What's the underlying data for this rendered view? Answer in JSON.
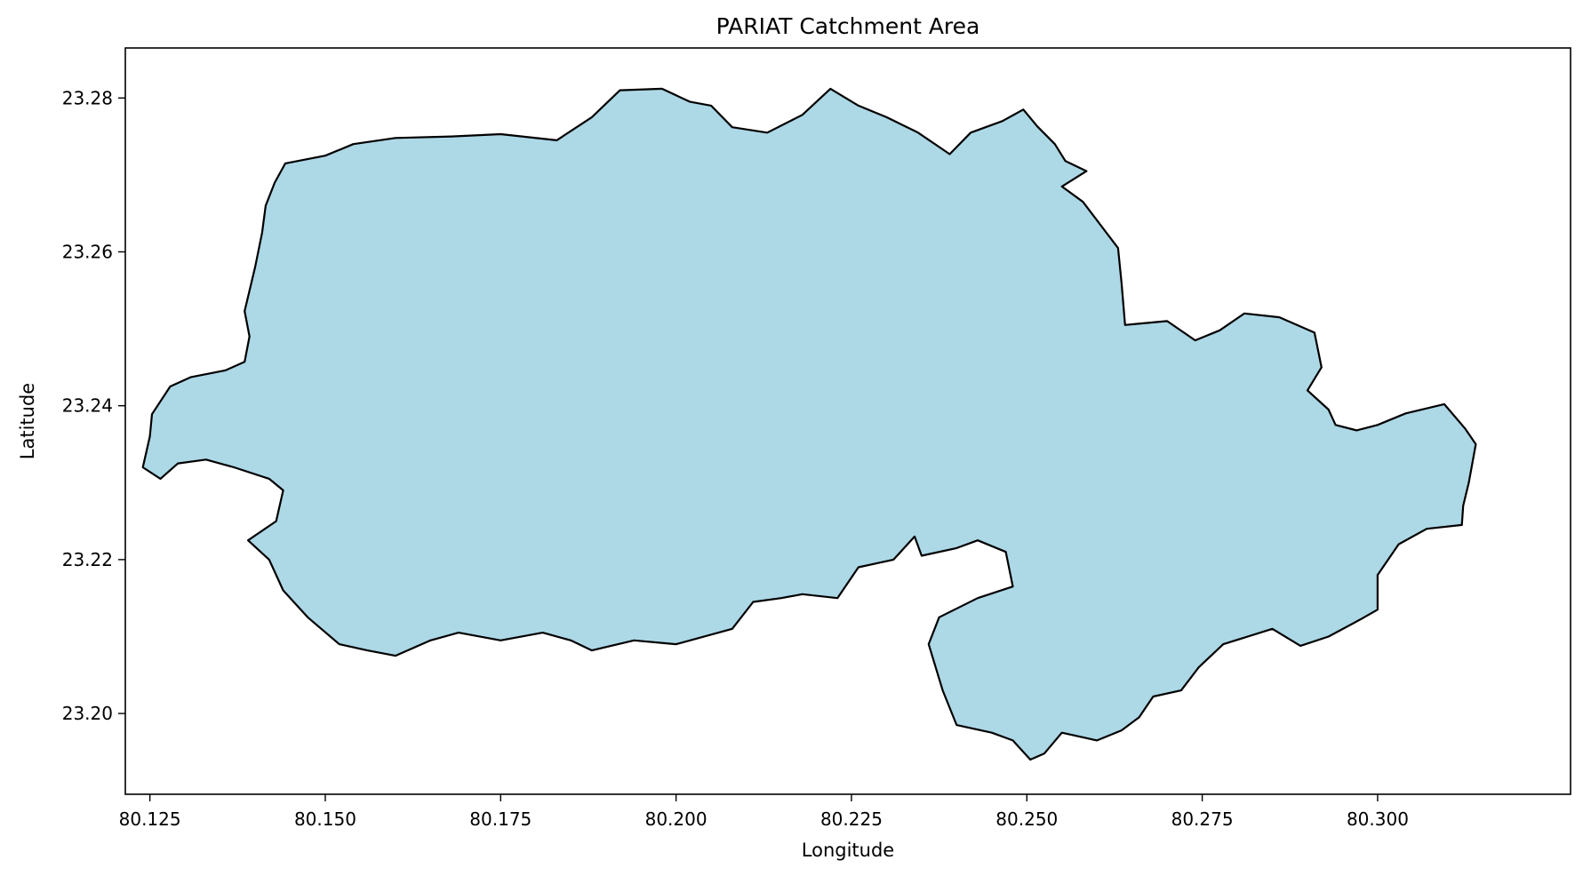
{
  "chart_data": {
    "type": "area",
    "title": "PARIAT Catchment Area",
    "xlabel": "Longitude",
    "ylabel": "Latitude",
    "xlim": [
      80.1215,
      80.3275
    ],
    "ylim": [
      23.1895,
      23.2865
    ],
    "xticks": [
      80.125,
      80.15,
      80.175,
      80.2,
      80.225,
      80.25,
      80.275,
      80.3
    ],
    "xtick_labels": [
      "80.125",
      "80.150",
      "80.175",
      "80.200",
      "80.225",
      "80.250",
      "80.275",
      "80.300"
    ],
    "yticks": [
      23.2,
      23.22,
      23.24,
      23.26,
      23.28
    ],
    "ytick_labels": [
      "23.20",
      "23.22",
      "23.24",
      "23.26",
      "23.28"
    ],
    "grid": false,
    "fill_color": "#add8e6",
    "edge_color": "#000000",
    "polygon": [
      [
        80.1253,
        23.2389
      ],
      [
        80.1279,
        23.2425
      ],
      [
        80.1308,
        23.2437
      ],
      [
        80.1358,
        23.2446
      ],
      [
        80.1385,
        23.2457
      ],
      [
        80.1392,
        23.249
      ],
      [
        80.1385,
        23.2523
      ],
      [
        80.14,
        23.258
      ],
      [
        80.141,
        23.2625
      ],
      [
        80.1415,
        23.266
      ],
      [
        80.1428,
        23.269
      ],
      [
        80.1443,
        23.2715
      ],
      [
        80.15,
        23.2725
      ],
      [
        80.154,
        23.274
      ],
      [
        80.16,
        23.2748
      ],
      [
        80.168,
        23.275
      ],
      [
        80.175,
        23.2753
      ],
      [
        80.183,
        23.2745
      ],
      [
        80.188,
        23.2775
      ],
      [
        80.192,
        23.281
      ],
      [
        80.198,
        23.2812
      ],
      [
        80.202,
        23.2795
      ],
      [
        80.205,
        23.279
      ],
      [
        80.208,
        23.2762
      ],
      [
        80.213,
        23.2755
      ],
      [
        80.218,
        23.2778
      ],
      [
        80.222,
        23.2812
      ],
      [
        80.226,
        23.279
      ],
      [
        80.23,
        23.2775
      ],
      [
        80.2345,
        23.2755
      ],
      [
        80.239,
        23.2727
      ],
      [
        80.242,
        23.2755
      ],
      [
        80.2465,
        23.277
      ],
      [
        80.2495,
        23.2785
      ],
      [
        80.2515,
        23.2763
      ],
      [
        80.254,
        23.274
      ],
      [
        80.2555,
        23.2718
      ],
      [
        80.2585,
        23.2705
      ],
      [
        80.255,
        23.2685
      ],
      [
        80.258,
        23.2665
      ],
      [
        80.263,
        23.2605
      ],
      [
        80.2635,
        23.256
      ],
      [
        80.264,
        23.2505
      ],
      [
        80.27,
        23.251
      ],
      [
        80.274,
        23.2485
      ],
      [
        80.2775,
        23.2498
      ],
      [
        80.281,
        23.252
      ],
      [
        80.286,
        23.2515
      ],
      [
        80.291,
        23.2495
      ],
      [
        80.292,
        23.245
      ],
      [
        80.29,
        23.242
      ],
      [
        80.293,
        23.2395
      ],
      [
        80.294,
        23.2375
      ],
      [
        80.297,
        23.2368
      ],
      [
        80.3,
        23.2375
      ],
      [
        80.304,
        23.239
      ],
      [
        80.3095,
        23.2402
      ],
      [
        80.3125,
        23.237
      ],
      [
        80.314,
        23.235
      ],
      [
        80.313,
        23.23
      ],
      [
        80.3122,
        23.227
      ],
      [
        80.312,
        23.2245
      ],
      [
        80.307,
        23.224
      ],
      [
        80.303,
        23.222
      ],
      [
        80.3,
        23.218
      ],
      [
        80.3,
        23.2135
      ],
      [
        80.2975,
        23.2122
      ],
      [
        80.293,
        23.21
      ],
      [
        80.289,
        23.2088
      ],
      [
        80.285,
        23.211
      ],
      [
        80.278,
        23.209
      ],
      [
        80.2745,
        23.206
      ],
      [
        80.272,
        23.203
      ],
      [
        80.268,
        23.2022
      ],
      [
        80.266,
        23.1995
      ],
      [
        80.2635,
        23.1978
      ],
      [
        80.26,
        23.1965
      ],
      [
        80.255,
        23.1975
      ],
      [
        80.2525,
        23.1948
      ],
      [
        80.2505,
        23.194
      ],
      [
        80.248,
        23.1965
      ],
      [
        80.245,
        23.1975
      ],
      [
        80.24,
        23.1985
      ],
      [
        80.238,
        23.203
      ],
      [
        80.237,
        23.206
      ],
      [
        80.236,
        23.209
      ],
      [
        80.2375,
        23.2125
      ],
      [
        80.243,
        23.215
      ],
      [
        80.248,
        23.2165
      ],
      [
        80.247,
        23.221
      ],
      [
        80.243,
        23.2225
      ],
      [
        80.24,
        23.2215
      ],
      [
        80.235,
        23.2205
      ],
      [
        80.234,
        23.223
      ],
      [
        80.231,
        23.22
      ],
      [
        80.226,
        23.219
      ],
      [
        80.223,
        23.215
      ],
      [
        80.218,
        23.2155
      ],
      [
        80.215,
        23.215
      ],
      [
        80.211,
        23.2145
      ],
      [
        80.208,
        23.211
      ],
      [
        80.2,
        23.209
      ],
      [
        80.194,
        23.2095
      ],
      [
        80.188,
        23.2082
      ],
      [
        80.185,
        23.2095
      ],
      [
        80.181,
        23.2105
      ],
      [
        80.175,
        23.2095
      ],
      [
        80.169,
        23.2105
      ],
      [
        80.165,
        23.2095
      ],
      [
        80.16,
        23.2075
      ],
      [
        80.156,
        23.2082
      ],
      [
        80.152,
        23.209
      ],
      [
        80.1475,
        23.2125
      ],
      [
        80.144,
        23.216
      ],
      [
        80.142,
        23.22
      ],
      [
        80.139,
        23.2225
      ],
      [
        80.143,
        23.225
      ],
      [
        80.144,
        23.229
      ],
      [
        80.142,
        23.2305
      ],
      [
        80.137,
        23.232
      ],
      [
        80.133,
        23.233
      ],
      [
        80.129,
        23.2325
      ],
      [
        80.1265,
        23.2305
      ],
      [
        80.124,
        23.232
      ],
      [
        80.125,
        23.236
      ]
    ]
  }
}
